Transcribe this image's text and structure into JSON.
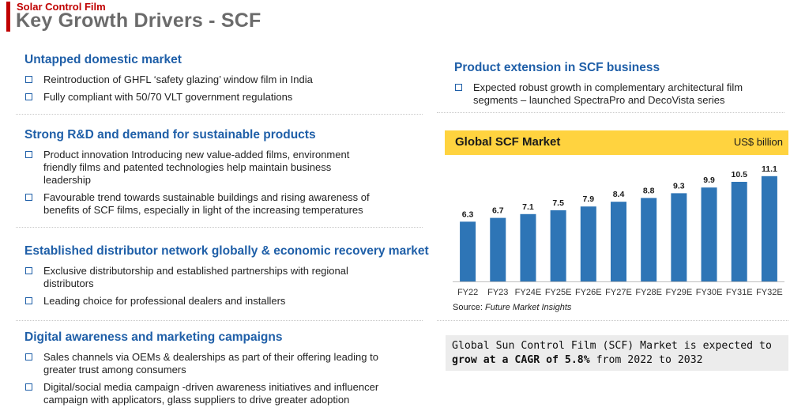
{
  "header": {
    "subtitle": "Solar Control Film",
    "title": "Key Growth Drivers - SCF"
  },
  "sections": [
    {
      "heading": "Untapped domestic market",
      "bullets": [
        "Reintroduction of GHFL ‘safety glazing’ window film in India",
        "Fully compliant with 50/70 VLT government regulations"
      ]
    },
    {
      "heading": "Strong R&D and demand for sustainable products",
      "bullets": [
        "Product innovation Introducing new value-added films, environment friendly films and patented technologies help maintain business leadership",
        "Favourable trend towards sustainable buildings and rising awareness of benefits of SCF films, especially in light of the increasing temperatures"
      ]
    },
    {
      "heading": "Established distributor network globally & economic recovery market",
      "bullets": [
        "Exclusive distributorship and established partnerships with regional distributors",
        "Leading choice for professional dealers and installers"
      ]
    },
    {
      "heading": "Digital awareness and marketing campaigns",
      "bullets": [
        "Sales channels via OEMs & dealerships as part of their offering leading to greater trust among consumers",
        "Digital/social media campaign -driven awareness initiatives and influencer campaign with applicators, glass suppliers to drive greater adoption"
      ]
    }
  ],
  "right_section": {
    "heading": "Product extension in SCF business",
    "bullets": [
      "Expected robust growth in complementary architectural film segments – launched SpectraPro and DecoVista series"
    ]
  },
  "chart_header": {
    "title": "Global SCF Market",
    "unit": "US$ billion"
  },
  "chart_data": {
    "type": "bar",
    "title": "Global SCF Market",
    "ylabel": "US$ billion",
    "xlabel": "",
    "categories": [
      "FY22",
      "FY23",
      "FY24E",
      "FY25E",
      "FY26E",
      "FY27E",
      "FY28E",
      "FY29E",
      "FY30E",
      "FY31E",
      "FY32E"
    ],
    "values": [
      6.3,
      6.7,
      7.1,
      7.5,
      7.9,
      8.4,
      8.8,
      9.3,
      9.9,
      10.5,
      11.1
    ],
    "ylim": [
      0,
      12.5
    ],
    "grid": false,
    "bar_color": "#2e75b6"
  },
  "source": {
    "label": "Source:",
    "name": "Future Market Insights"
  },
  "callout": {
    "text_1": "Global Sun Control Film (SCF) Market is expected to ",
    "bold_1": "grow at a CAGR of 5.8%",
    "text_2": " from 2022 to 2032"
  },
  "colors": {
    "accent_red": "#c00000",
    "heading_blue": "#1f5fa8",
    "chart_header_yellow": "#ffd33f",
    "bar_blue": "#2e75b6"
  }
}
